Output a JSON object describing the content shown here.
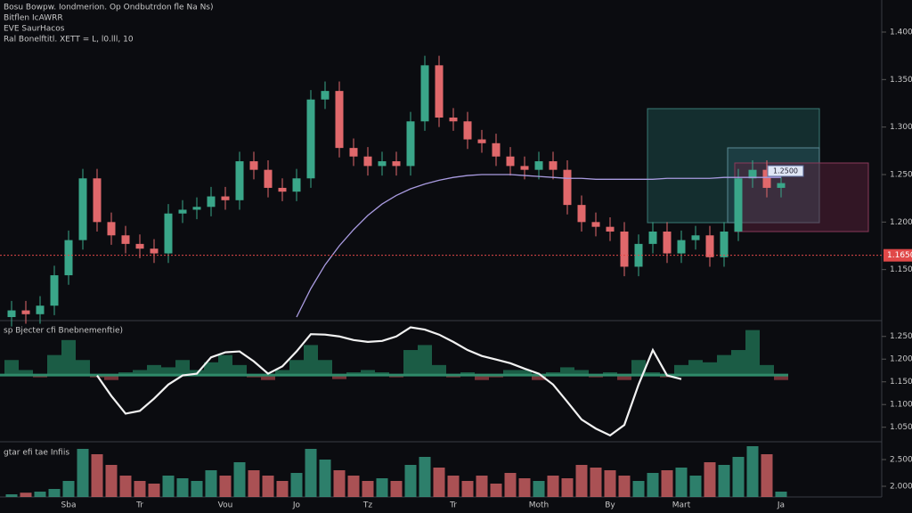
{
  "chart_data": [
    {
      "type": "candlestick",
      "title": "Bosu Bowpw. Iondmerion. Op Ondbutrdon fle Na Ns)",
      "info_lines": [
        "Bitflen IcAWRR",
        "EVE SaurHacos",
        "Ral Bonelftitl. XETT = L, l0.lll, 10"
      ],
      "categories": [
        null,
        null,
        null,
        null,
        "Sba",
        null,
        null,
        null,
        null,
        "Tr",
        null,
        null,
        null,
        null,
        null,
        "Vou",
        null,
        null,
        null,
        null,
        "Jo",
        null,
        null,
        null,
        null,
        "Tz",
        null,
        null,
        null,
        null,
        null,
        "Tr",
        null,
        null,
        null,
        null,
        null,
        "Moth",
        null,
        null,
        null,
        null,
        "By",
        null,
        null,
        null,
        null,
        "Mart",
        null,
        null,
        null,
        null,
        null,
        null,
        "Ja"
      ],
      "open": [
        1.1,
        1.107,
        1.103,
        1.112,
        1.144,
        1.181,
        1.246,
        1.2,
        1.186,
        1.177,
        1.172,
        1.167,
        1.209,
        1.213,
        1.216,
        1.227,
        1.223,
        1.264,
        1.255,
        1.236,
        1.232,
        1.246,
        1.329,
        1.338,
        1.278,
        1.269,
        1.259,
        1.264,
        1.259,
        1.306,
        1.365,
        1.31,
        1.306,
        1.287,
        1.283,
        1.269,
        1.259,
        1.255,
        1.264,
        1.255,
        1.218,
        1.2,
        1.195,
        1.19,
        1.153,
        1.177,
        1.19,
        1.167,
        1.181,
        1.186,
        1.163,
        1.19,
        1.246,
        1.255,
        1.236
      ],
      "high": [
        1.117,
        1.117,
        1.122,
        1.154,
        1.191,
        1.256,
        1.256,
        1.21,
        1.196,
        1.187,
        1.182,
        1.219,
        1.223,
        1.226,
        1.237,
        1.237,
        1.274,
        1.274,
        1.265,
        1.246,
        1.256,
        1.339,
        1.348,
        1.348,
        1.288,
        1.279,
        1.274,
        1.274,
        1.316,
        1.375,
        1.375,
        1.32,
        1.316,
        1.297,
        1.293,
        1.279,
        1.269,
        1.274,
        1.274,
        1.265,
        1.228,
        1.21,
        1.205,
        1.2,
        1.187,
        1.2,
        1.2,
        1.191,
        1.196,
        1.196,
        1.2,
        1.256,
        1.265,
        1.265,
        1.251
      ],
      "low": [
        1.09,
        1.093,
        1.093,
        1.102,
        1.134,
        1.171,
        1.19,
        1.176,
        1.167,
        1.162,
        1.157,
        1.157,
        1.199,
        1.203,
        1.206,
        1.213,
        1.213,
        1.245,
        1.226,
        1.222,
        1.222,
        1.236,
        1.319,
        1.268,
        1.259,
        1.249,
        1.249,
        1.249,
        1.249,
        1.296,
        1.3,
        1.296,
        1.277,
        1.273,
        1.259,
        1.249,
        1.245,
        1.245,
        1.245,
        1.208,
        1.19,
        1.185,
        1.18,
        1.143,
        1.143,
        1.167,
        1.157,
        1.157,
        1.171,
        1.153,
        1.153,
        1.18,
        1.236,
        1.226,
        1.226
      ],
      "close": [
        1.107,
        1.103,
        1.112,
        1.144,
        1.181,
        1.246,
        1.2,
        1.186,
        1.177,
        1.172,
        1.167,
        1.209,
        1.213,
        1.216,
        1.227,
        1.223,
        1.264,
        1.255,
        1.236,
        1.232,
        1.246,
        1.329,
        1.338,
        1.278,
        1.269,
        1.259,
        1.264,
        1.259,
        1.306,
        1.365,
        1.31,
        1.306,
        1.287,
        1.283,
        1.269,
        1.259,
        1.255,
        1.264,
        1.255,
        1.218,
        1.2,
        1.195,
        1.19,
        1.153,
        1.177,
        1.19,
        1.167,
        1.181,
        1.186,
        1.163,
        1.19,
        1.246,
        1.255,
        1.236,
        1.241
      ],
      "up_color": "#3aa689",
      "down_color": "#e0686b",
      "ma": {
        "color": "#a99be0",
        "values": [
          null,
          null,
          null,
          null,
          null,
          null,
          null,
          null,
          null,
          null,
          null,
          null,
          null,
          null,
          null,
          null,
          null,
          null,
          null,
          null,
          1.1,
          1.13,
          1.155,
          1.175,
          1.192,
          1.207,
          1.219,
          1.228,
          1.235,
          1.24,
          1.244,
          1.247,
          1.249,
          1.25,
          1.25,
          1.25,
          1.249,
          1.248,
          1.247,
          1.246,
          1.246,
          1.245,
          1.245,
          1.245,
          1.245,
          1.245,
          1.246,
          1.246,
          1.246,
          1.246,
          1.247,
          1.247,
          1.247,
          1.247,
          1.247
        ]
      },
      "price_line": {
        "value": 1.165,
        "label": "1.1650",
        "color": "#e04848"
      },
      "annotation": "1.2500",
      "ylim": [
        1.1,
        1.43
      ],
      "yticks": [
        {
          "value": 1.4,
          "label": "1.400"
        },
        {
          "value": 1.35,
          "label": "1.350"
        },
        {
          "value": 1.3,
          "label": "1.300"
        },
        {
          "value": 1.25,
          "label": "1.250"
        },
        {
          "value": 1.2,
          "label": "1.200"
        },
        {
          "value": 1.15,
          "label": "1.150"
        }
      ]
    },
    {
      "type": "oscillator",
      "title": "sp Bjecter cfi Bnebnemenftie)",
      "baseline": 1.165,
      "line": {
        "color": "#f2f2f2",
        "values": [
          null,
          null,
          null,
          null,
          null,
          null,
          1.164,
          1.119,
          1.08,
          1.086,
          1.113,
          1.144,
          1.164,
          1.168,
          1.204,
          1.215,
          1.217,
          1.195,
          1.168,
          1.184,
          1.217,
          1.255,
          1.254,
          1.25,
          1.242,
          1.238,
          1.24,
          1.25,
          1.27,
          1.265,
          1.254,
          1.238,
          1.22,
          1.207,
          1.199,
          1.191,
          1.179,
          1.168,
          1.144,
          1.106,
          1.067,
          1.047,
          1.032,
          1.055,
          1.144,
          1.22,
          1.164,
          1.156,
          null,
          null,
          null,
          null,
          null,
          null,
          null
        ]
      },
      "histogram": {
        "up_color": "#1f6b4f",
        "down_color": "#8a3b3f",
        "values": [
          1.198,
          1.176,
          1.16,
          1.209,
          1.242,
          1.198,
          1.16,
          1.154,
          1.171,
          1.176,
          1.187,
          1.182,
          1.198,
          1.176,
          1.193,
          1.209,
          1.187,
          1.16,
          1.154,
          1.176,
          1.198,
          1.231,
          1.198,
          1.156,
          1.171,
          1.176,
          1.171,
          1.16,
          1.22,
          1.231,
          1.187,
          1.16,
          1.171,
          1.154,
          1.16,
          1.176,
          1.176,
          1.154,
          1.171,
          1.182,
          1.176,
          1.16,
          1.171,
          1.154,
          1.198,
          1.171,
          1.16,
          1.187,
          1.198,
          1.193,
          1.209,
          1.22,
          1.264,
          1.187,
          1.154
        ]
      },
      "ylim": [
        1.02,
        1.275
      ],
      "yticks": [
        {
          "value": 1.25,
          "label": "1.250"
        },
        {
          "value": 1.2,
          "label": "1.200"
        },
        {
          "value": 1.15,
          "label": "1.150"
        },
        {
          "value": 1.1,
          "label": "1.100"
        },
        {
          "value": 1.05,
          "label": "1.050"
        }
      ]
    },
    {
      "type": "volume",
      "title": "gtar efi tae Infiis",
      "values": [
        1.85,
        1.88,
        1.9,
        1.95,
        2.1,
        2.7,
        2.6,
        2.4,
        2.2,
        2.1,
        2.05,
        2.2,
        2.15,
        2.1,
        2.3,
        2.2,
        2.45,
        2.3,
        2.2,
        2.1,
        2.25,
        2.7,
        2.5,
        2.3,
        2.2,
        2.1,
        2.15,
        2.1,
        2.4,
        2.55,
        2.35,
        2.2,
        2.1,
        2.2,
        2.05,
        2.25,
        2.15,
        2.1,
        2.2,
        2.15,
        2.4,
        2.35,
        2.3,
        2.2,
        2.1,
        2.25,
        2.3,
        2.35,
        2.2,
        2.45,
        2.4,
        2.55,
        2.75,
        2.6,
        1.9
      ],
      "ylim": [
        1.8,
        2.8
      ],
      "yticks": [
        {
          "value": 2.5,
          "label": "2.500"
        },
        {
          "value": 2.0,
          "label": "2.000"
        }
      ]
    }
  ]
}
